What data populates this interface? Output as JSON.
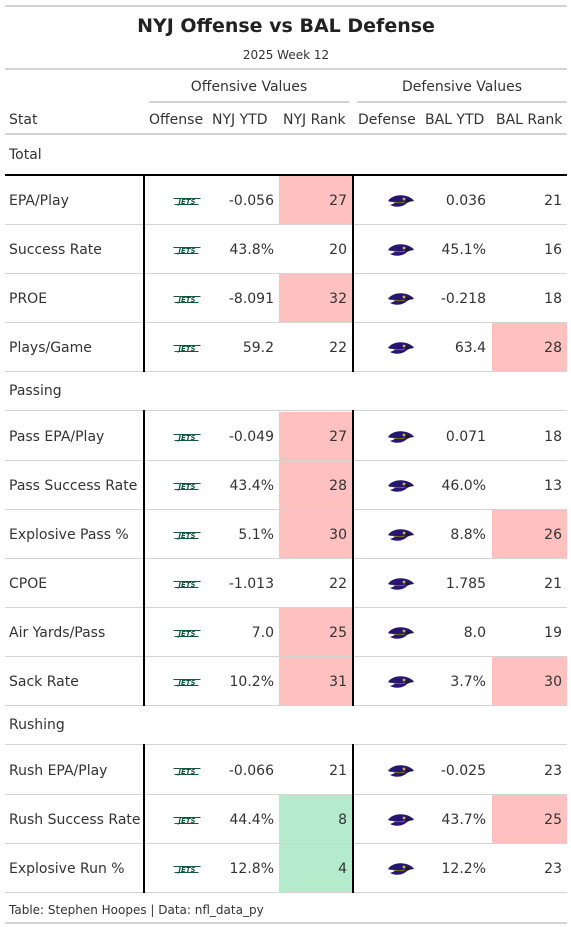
{
  "title": "NYJ Offense vs BAL Defense",
  "subtitle": "2025 Week 12",
  "spanners": {
    "offensive": "Offensive Values",
    "defensive": "Defensive Values"
  },
  "columns": {
    "stat": "Stat",
    "offense": "Offense",
    "nyj_ytd": "NYJ YTD",
    "nyj_rank": "NYJ Rank",
    "defense": "Defense",
    "bal_ytd": "BAL YTD",
    "bal_rank": "BAL Rank"
  },
  "colors": {
    "bad": "#ffc0c0",
    "good": "#b3ebcc",
    "jets_green": "#125740",
    "ravens_purple": "#241773"
  },
  "groups": [
    {
      "label": "Total",
      "rows": [
        {
          "stat": "EPA/Play",
          "nyj_ytd": "-0.056",
          "nyj_rank": "27",
          "nyj_flag": "bad",
          "bal_ytd": "0.036",
          "bal_rank": "21",
          "bal_flag": ""
        },
        {
          "stat": "Success Rate",
          "nyj_ytd": "43.8%",
          "nyj_rank": "20",
          "nyj_flag": "",
          "bal_ytd": "45.1%",
          "bal_rank": "16",
          "bal_flag": ""
        },
        {
          "stat": "PROE",
          "nyj_ytd": "-8.091",
          "nyj_rank": "32",
          "nyj_flag": "bad",
          "bal_ytd": "-0.218",
          "bal_rank": "18",
          "bal_flag": ""
        },
        {
          "stat": "Plays/Game",
          "nyj_ytd": "59.2",
          "nyj_rank": "22",
          "nyj_flag": "",
          "bal_ytd": "63.4",
          "bal_rank": "28",
          "bal_flag": "bad"
        }
      ]
    },
    {
      "label": "Passing",
      "rows": [
        {
          "stat": "Pass EPA/Play",
          "nyj_ytd": "-0.049",
          "nyj_rank": "27",
          "nyj_flag": "bad",
          "bal_ytd": "0.071",
          "bal_rank": "18",
          "bal_flag": ""
        },
        {
          "stat": "Pass Success Rate",
          "nyj_ytd": "43.4%",
          "nyj_rank": "28",
          "nyj_flag": "bad",
          "bal_ytd": "46.0%",
          "bal_rank": "13",
          "bal_flag": ""
        },
        {
          "stat": "Explosive Pass %",
          "nyj_ytd": "5.1%",
          "nyj_rank": "30",
          "nyj_flag": "bad",
          "bal_ytd": "8.8%",
          "bal_rank": "26",
          "bal_flag": "bad"
        },
        {
          "stat": "CPOE",
          "nyj_ytd": "-1.013",
          "nyj_rank": "22",
          "nyj_flag": "",
          "bal_ytd": "1.785",
          "bal_rank": "21",
          "bal_flag": ""
        },
        {
          "stat": "Air Yards/Pass",
          "nyj_ytd": "7.0",
          "nyj_rank": "25",
          "nyj_flag": "bad",
          "bal_ytd": "8.0",
          "bal_rank": "19",
          "bal_flag": ""
        },
        {
          "stat": "Sack Rate",
          "nyj_ytd": "10.2%",
          "nyj_rank": "31",
          "nyj_flag": "bad",
          "bal_ytd": "3.7%",
          "bal_rank": "30",
          "bal_flag": "bad"
        }
      ]
    },
    {
      "label": "Rushing",
      "rows": [
        {
          "stat": "Rush EPA/Play",
          "nyj_ytd": "-0.066",
          "nyj_rank": "21",
          "nyj_flag": "",
          "bal_ytd": "-0.025",
          "bal_rank": "23",
          "bal_flag": ""
        },
        {
          "stat": "Rush Success Rate",
          "nyj_ytd": "44.4%",
          "nyj_rank": "8",
          "nyj_flag": "good",
          "bal_ytd": "43.7%",
          "bal_rank": "25",
          "bal_flag": "bad"
        },
        {
          "stat": "Explosive Run %",
          "nyj_ytd": "12.8%",
          "nyj_rank": "4",
          "nyj_flag": "good",
          "bal_ytd": "12.2%",
          "bal_rank": "23",
          "bal_flag": ""
        }
      ]
    }
  ],
  "logos": {
    "offense": "jets-logo-icon",
    "defense": "ravens-logo-icon"
  },
  "footer": "Table: Stephen Hoopes | Data: nfl_data_py"
}
